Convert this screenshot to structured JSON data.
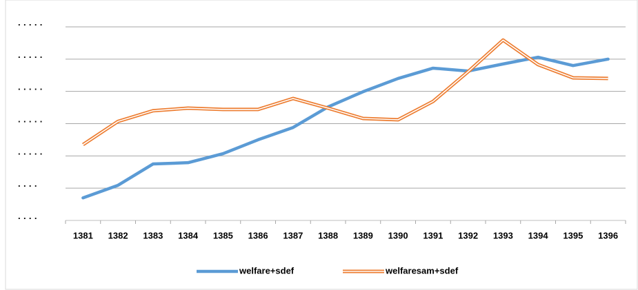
{
  "chart_data": {
    "type": "line",
    "categories": [
      "1381",
      "1382",
      "1383",
      "1384",
      "1385",
      "1386",
      "1387",
      "1388",
      "1389",
      "1390",
      "1391",
      "1392",
      "1393",
      "1394",
      "1395",
      "1396"
    ],
    "series": [
      {
        "name": "welfare+sdef",
        "color": "#5b9bd5",
        "style": "solid",
        "values": [
          0.7,
          1.09,
          1.75,
          1.79,
          2.07,
          2.5,
          2.88,
          3.52,
          3.99,
          4.4,
          4.72,
          4.63,
          4.85,
          5.06,
          4.8,
          5.0
        ]
      },
      {
        "name": "welfaresam+sdef",
        "color": "#ed7d31",
        "style": "double",
        "values": [
          2.35,
          3.07,
          3.4,
          3.48,
          3.44,
          3.44,
          3.78,
          3.48,
          3.16,
          3.12,
          3.69,
          4.61,
          5.59,
          4.83,
          4.42,
          4.4
        ]
      }
    ],
    "ylim": [
      0,
      6
    ],
    "yticks": [
      {
        "value": 0,
        "label": "· · · ·"
      },
      {
        "value": 1,
        "label": "· · · ·"
      },
      {
        "value": 2,
        "label": "· · · · ·"
      },
      {
        "value": 3,
        "label": "· · · · ·"
      },
      {
        "value": 4,
        "label": "· · · · ·"
      },
      {
        "value": 5,
        "label": "· · · · ·"
      },
      {
        "value": 6,
        "label": "· · · · ·"
      }
    ],
    "grid": true,
    "legend": "bottom"
  }
}
